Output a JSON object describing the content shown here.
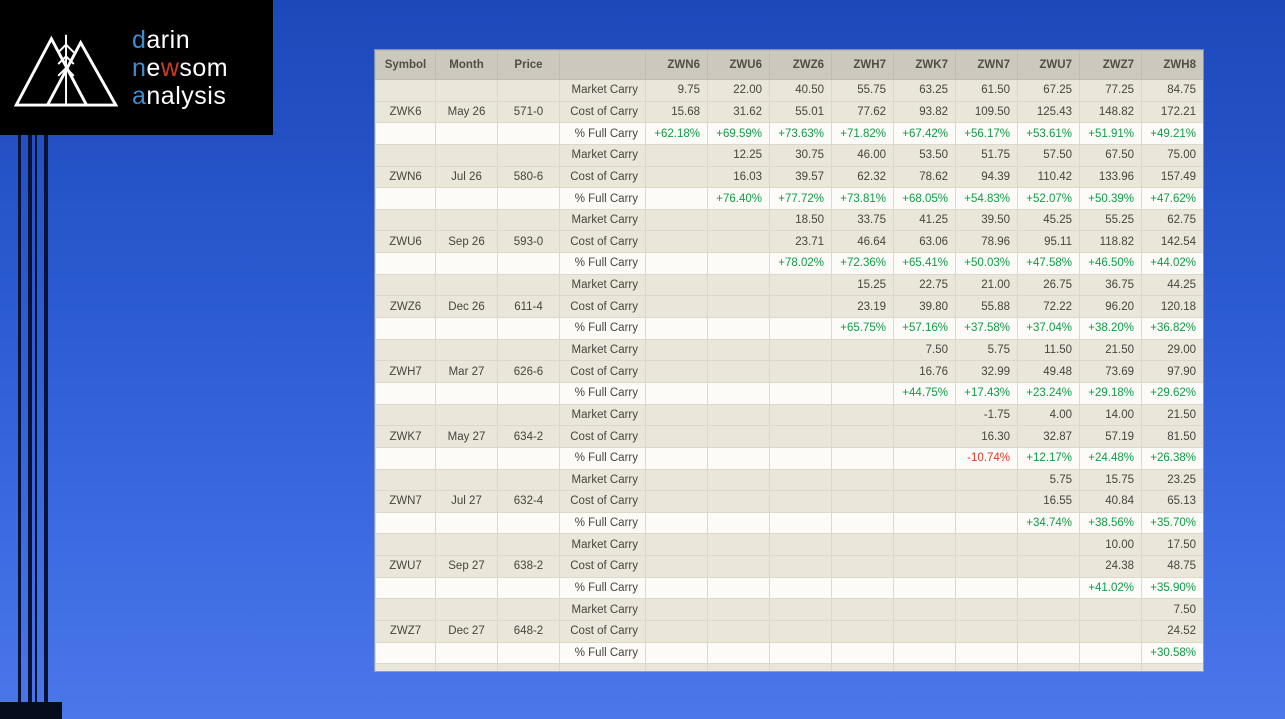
{
  "logo": {
    "word1_accent": "d",
    "word1_rest": "arin",
    "word2_accent": "n",
    "word2_mid": "e",
    "word2_highlight": "w",
    "word2_rest": "som",
    "word3_accent": "a",
    "word3_rest": "nalysis"
  },
  "colors": {
    "accent_blue": "#3e8ece",
    "highlight_red": "#cf3a28",
    "positive_green": "#0f9d48",
    "negative_red": "#d93a2b",
    "header_bg": "#ccc8bd",
    "row_cream": "#eae6d9",
    "row_white": "#fcfbf7"
  },
  "table": {
    "headers": [
      "Symbol",
      "Month",
      "Price",
      "",
      "ZWN6",
      "ZWU6",
      "ZWZ6",
      "ZWH7",
      "ZWK7",
      "ZWN7",
      "ZWU7",
      "ZWZ7",
      "ZWH8"
    ],
    "row_labels": [
      "Market Carry",
      "Cost of Carry",
      "% Full Carry"
    ],
    "groups": [
      {
        "symbol": "ZWK6",
        "month": "May 26",
        "price": "571-0",
        "market_carry": [
          "9.75",
          "22.00",
          "40.50",
          "55.75",
          "63.25",
          "61.50",
          "67.25",
          "77.25",
          "84.75"
        ],
        "cost_of_carry": [
          "15.68",
          "31.62",
          "55.01",
          "77.62",
          "93.82",
          "109.50",
          "125.43",
          "148.82",
          "172.21"
        ],
        "pct_full_carry": [
          "+62.18%",
          "+69.59%",
          "+73.63%",
          "+71.82%",
          "+67.42%",
          "+56.17%",
          "+53.61%",
          "+51.91%",
          "+49.21%"
        ]
      },
      {
        "symbol": "ZWN6",
        "month": "Jul 26",
        "price": "580-6",
        "market_carry": [
          "",
          "12.25",
          "30.75",
          "46.00",
          "53.50",
          "51.75",
          "57.50",
          "67.50",
          "75.00"
        ],
        "cost_of_carry": [
          "",
          "16.03",
          "39.57",
          "62.32",
          "78.62",
          "94.39",
          "110.42",
          "133.96",
          "157.49"
        ],
        "pct_full_carry": [
          "",
          "+76.40%",
          "+77.72%",
          "+73.81%",
          "+68.05%",
          "+54.83%",
          "+52.07%",
          "+50.39%",
          "+47.62%"
        ]
      },
      {
        "symbol": "ZWU6",
        "month": "Sep 26",
        "price": "593-0",
        "market_carry": [
          "",
          "",
          "18.50",
          "33.75",
          "41.25",
          "39.50",
          "45.25",
          "55.25",
          "62.75"
        ],
        "cost_of_carry": [
          "",
          "",
          "23.71",
          "46.64",
          "63.06",
          "78.96",
          "95.11",
          "118.82",
          "142.54"
        ],
        "pct_full_carry": [
          "",
          "",
          "+78.02%",
          "+72.36%",
          "+65.41%",
          "+50.03%",
          "+47.58%",
          "+46.50%",
          "+44.02%"
        ]
      },
      {
        "symbol": "ZWZ6",
        "month": "Dec 26",
        "price": "611-4",
        "market_carry": [
          "",
          "",
          "",
          "15.25",
          "22.75",
          "21.00",
          "26.75",
          "36.75",
          "44.25"
        ],
        "cost_of_carry": [
          "",
          "",
          "",
          "23.19",
          "39.80",
          "55.88",
          "72.22",
          "96.20",
          "120.18"
        ],
        "pct_full_carry": [
          "",
          "",
          "",
          "+65.75%",
          "+57.16%",
          "+37.58%",
          "+37.04%",
          "+38.20%",
          "+36.82%"
        ]
      },
      {
        "symbol": "ZWH7",
        "month": "Mar 27",
        "price": "626-6",
        "market_carry": [
          "",
          "",
          "",
          "",
          "7.50",
          "5.75",
          "11.50",
          "21.50",
          "29.00"
        ],
        "cost_of_carry": [
          "",
          "",
          "",
          "",
          "16.76",
          "32.99",
          "49.48",
          "73.69",
          "97.90"
        ],
        "pct_full_carry": [
          "",
          "",
          "",
          "",
          "+44.75%",
          "+17.43%",
          "+23.24%",
          "+29.18%",
          "+29.62%"
        ]
      },
      {
        "symbol": "ZWK7",
        "month": "May 27",
        "price": "634-2",
        "market_carry": [
          "",
          "",
          "",
          "",
          "",
          "-1.75",
          "4.00",
          "14.00",
          "21.50"
        ],
        "cost_of_carry": [
          "",
          "",
          "",
          "",
          "",
          "16.30",
          "32.87",
          "57.19",
          "81.50"
        ],
        "pct_full_carry": [
          "",
          "",
          "",
          "",
          "",
          "-10.74%",
          "+12.17%",
          "+24.48%",
          "+26.38%"
        ]
      },
      {
        "symbol": "ZWN7",
        "month": "Jul 27",
        "price": "632-4",
        "market_carry": [
          "",
          "",
          "",
          "",
          "",
          "",
          "5.75",
          "15.75",
          "23.25"
        ],
        "cost_of_carry": [
          "",
          "",
          "",
          "",
          "",
          "",
          "16.55",
          "40.84",
          "65.13"
        ],
        "pct_full_carry": [
          "",
          "",
          "",
          "",
          "",
          "",
          "+34.74%",
          "+38.56%",
          "+35.70%"
        ]
      },
      {
        "symbol": "ZWU7",
        "month": "Sep 27",
        "price": "638-2",
        "market_carry": [
          "",
          "",
          "",
          "",
          "",
          "",
          "",
          "10.00",
          "17.50"
        ],
        "cost_of_carry": [
          "",
          "",
          "",
          "",
          "",
          "",
          "",
          "24.38",
          "48.75"
        ],
        "pct_full_carry": [
          "",
          "",
          "",
          "",
          "",
          "",
          "",
          "+41.02%",
          "+35.90%"
        ]
      },
      {
        "symbol": "ZWZ7",
        "month": "Dec 27",
        "price": "648-2",
        "market_carry": [
          "",
          "",
          "",
          "",
          "",
          "",
          "",
          "",
          "7.50"
        ],
        "cost_of_carry": [
          "",
          "",
          "",
          "",
          "",
          "",
          "",
          "",
          "24.52"
        ],
        "pct_full_carry": [
          "",
          "",
          "",
          "",
          "",
          "",
          "",
          "",
          "+30.58%"
        ]
      }
    ]
  }
}
